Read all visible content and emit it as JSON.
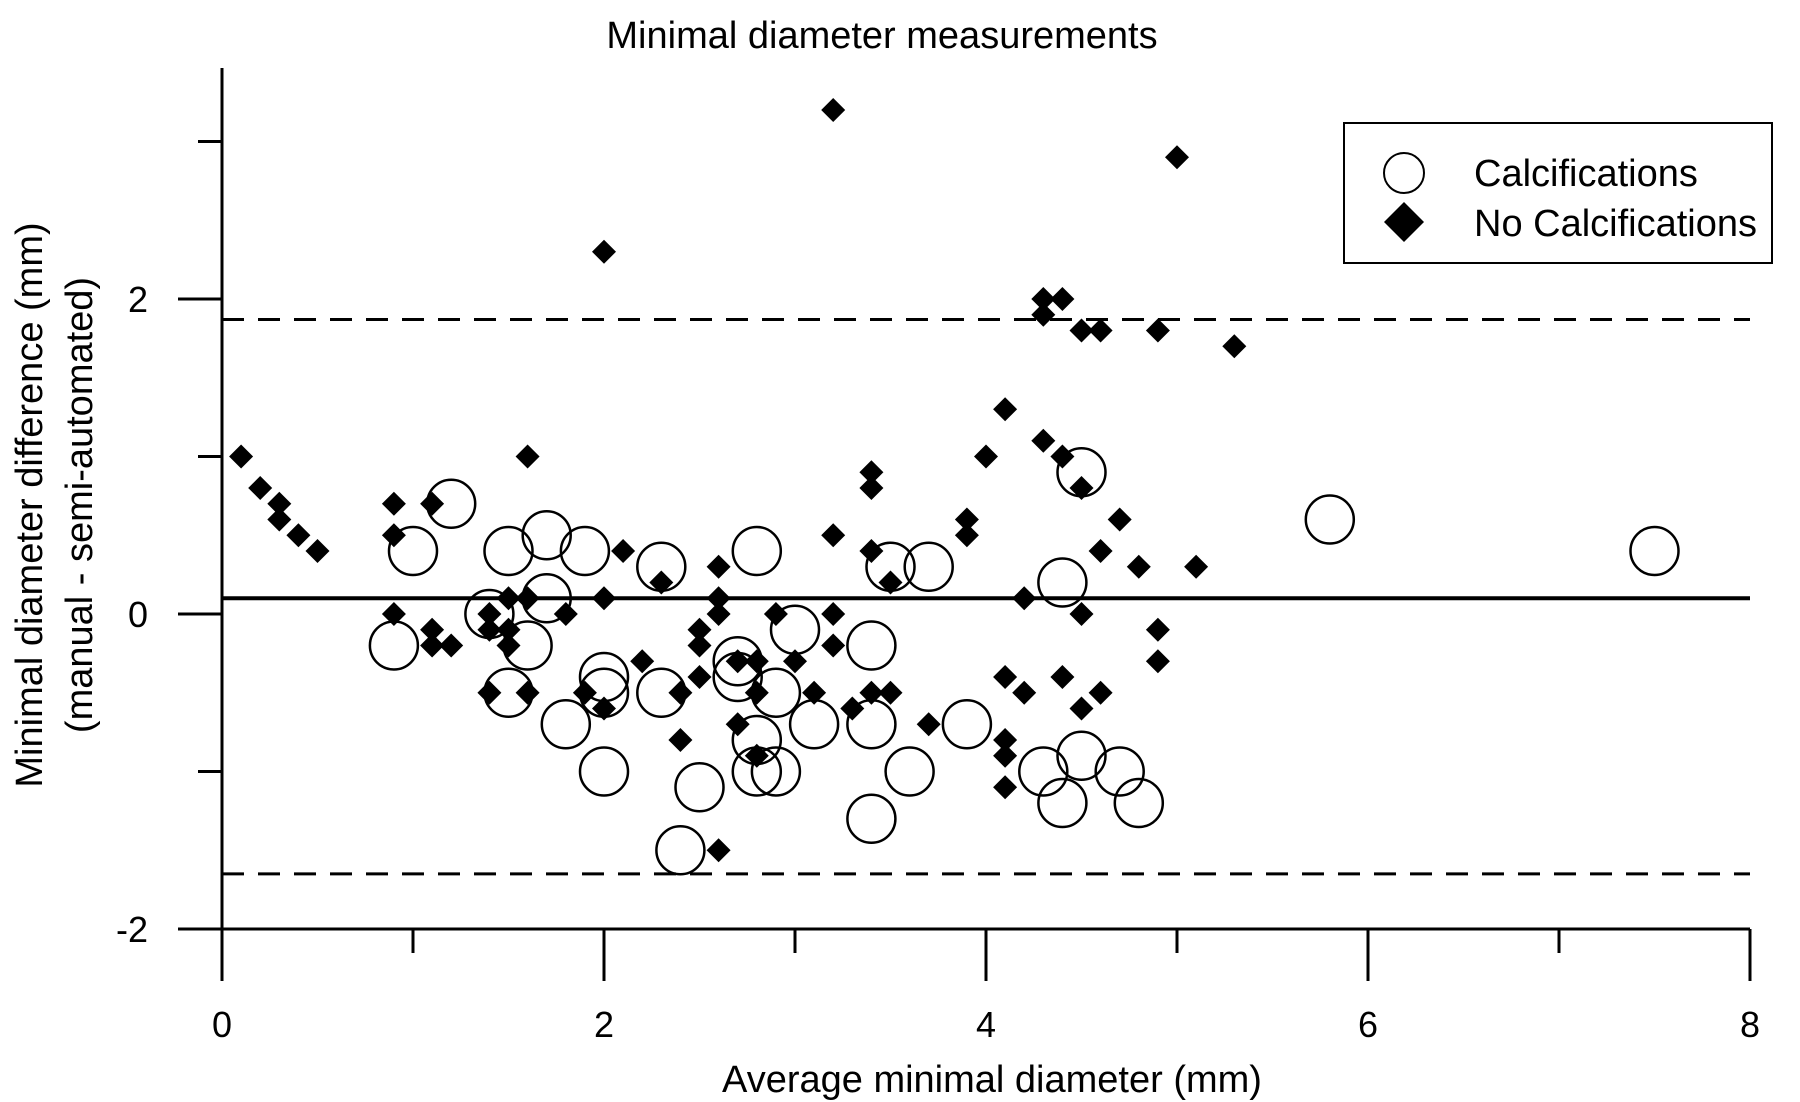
{
  "chart_data": {
    "type": "scatter",
    "title": "Minimal diameter measurements",
    "xlabel": "Average minimal diameter (mm)",
    "ylabel": "Minimal diameter difference (mm)",
    "ylabel2": "(manual - semi-automated)",
    "xlim": [
      0,
      8
    ],
    "ylim": [
      -2,
      3.5
    ],
    "x_ticks": [
      0,
      2,
      4,
      6,
      8
    ],
    "x_minor_ticks": [
      1,
      3,
      5,
      7
    ],
    "y_ticks": [
      -2,
      0,
      2
    ],
    "y_minor_ticks": [
      -1,
      1,
      3
    ],
    "grid": false,
    "legend_position": "top-right",
    "reference_lines": {
      "mean_difference": 0.1,
      "upper_limit_of_agreement": 1.87,
      "lower_limit_of_agreement": -1.65
    },
    "series": [
      {
        "name": "Calcifications",
        "marker": "open-circle",
        "points": [
          [
            0.9,
            -0.2
          ],
          [
            1.0,
            0.4
          ],
          [
            1.2,
            0.7
          ],
          [
            1.4,
            0.0
          ],
          [
            1.5,
            0.4
          ],
          [
            1.5,
            -0.5
          ],
          [
            1.6,
            -0.2
          ],
          [
            1.7,
            0.5
          ],
          [
            1.7,
            0.1
          ],
          [
            1.8,
            -0.7
          ],
          [
            1.9,
            0.4
          ],
          [
            2.0,
            -0.4
          ],
          [
            2.0,
            -0.5
          ],
          [
            2.0,
            -1.0
          ],
          [
            2.3,
            -0.5
          ],
          [
            2.3,
            0.3
          ],
          [
            2.4,
            -1.5
          ],
          [
            2.5,
            -1.1
          ],
          [
            2.7,
            -0.3
          ],
          [
            2.7,
            -0.4
          ],
          [
            2.8,
            0.4
          ],
          [
            2.8,
            -0.8
          ],
          [
            2.8,
            -1.0
          ],
          [
            2.9,
            -0.5
          ],
          [
            2.9,
            -1.0
          ],
          [
            3.0,
            -0.1
          ],
          [
            3.1,
            -0.7
          ],
          [
            3.4,
            -0.2
          ],
          [
            3.4,
            -0.7
          ],
          [
            3.4,
            -1.3
          ],
          [
            3.5,
            0.3
          ],
          [
            3.6,
            -1.0
          ],
          [
            3.7,
            0.3
          ],
          [
            3.9,
            -0.7
          ],
          [
            4.3,
            -1.0
          ],
          [
            4.4,
            -1.2
          ],
          [
            4.4,
            0.2
          ],
          [
            4.5,
            0.9
          ],
          [
            4.5,
            -0.9
          ],
          [
            4.7,
            -1.0
          ],
          [
            4.8,
            -1.2
          ],
          [
            5.8,
            0.6
          ],
          [
            7.5,
            0.4
          ]
        ]
      },
      {
        "name": "No Calcifications",
        "marker": "filled-diamond",
        "points": [
          [
            0.1,
            1.0
          ],
          [
            0.2,
            0.8
          ],
          [
            0.3,
            0.7
          ],
          [
            0.3,
            0.6
          ],
          [
            0.4,
            0.5
          ],
          [
            0.5,
            0.4
          ],
          [
            0.9,
            0.7
          ],
          [
            0.9,
            0.5
          ],
          [
            0.9,
            0.0
          ],
          [
            1.1,
            0.7
          ],
          [
            1.1,
            -0.1
          ],
          [
            1.1,
            -0.2
          ],
          [
            1.2,
            -0.2
          ],
          [
            1.4,
            -0.1
          ],
          [
            1.4,
            0.0
          ],
          [
            1.4,
            -0.5
          ],
          [
            1.5,
            -0.1
          ],
          [
            1.5,
            -0.2
          ],
          [
            1.5,
            0.1
          ],
          [
            1.6,
            1.0
          ],
          [
            1.6,
            0.1
          ],
          [
            1.6,
            -0.5
          ],
          [
            1.8,
            0.0
          ],
          [
            1.9,
            -0.5
          ],
          [
            2.0,
            2.3
          ],
          [
            2.0,
            0.1
          ],
          [
            2.0,
            -0.6
          ],
          [
            2.1,
            0.4
          ],
          [
            2.2,
            -0.3
          ],
          [
            2.3,
            0.2
          ],
          [
            2.4,
            -0.5
          ],
          [
            2.4,
            -0.8
          ],
          [
            2.5,
            -0.1
          ],
          [
            2.5,
            -0.2
          ],
          [
            2.5,
            -0.4
          ],
          [
            2.6,
            0.3
          ],
          [
            2.6,
            0.1
          ],
          [
            2.6,
            0.0
          ],
          [
            2.6,
            -1.5
          ],
          [
            2.7,
            -0.3
          ],
          [
            2.7,
            -0.7
          ],
          [
            2.8,
            -0.3
          ],
          [
            2.8,
            -0.5
          ],
          [
            2.8,
            -0.9
          ],
          [
            2.9,
            0.0
          ],
          [
            3.0,
            -0.3
          ],
          [
            3.1,
            -0.5
          ],
          [
            3.2,
            3.2
          ],
          [
            3.2,
            0.5
          ],
          [
            3.2,
            0.0
          ],
          [
            3.2,
            -0.2
          ],
          [
            3.3,
            -0.6
          ],
          [
            3.4,
            0.9
          ],
          [
            3.4,
            0.8
          ],
          [
            3.4,
            0.4
          ],
          [
            3.4,
            -0.5
          ],
          [
            3.5,
            0.2
          ],
          [
            3.5,
            -0.5
          ],
          [
            3.7,
            -0.7
          ],
          [
            3.9,
            0.6
          ],
          [
            3.9,
            0.5
          ],
          [
            4.0,
            1.0
          ],
          [
            4.1,
            1.3
          ],
          [
            4.1,
            -0.4
          ],
          [
            4.1,
            -0.8
          ],
          [
            4.1,
            -0.9
          ],
          [
            4.1,
            -1.1
          ],
          [
            4.2,
            0.1
          ],
          [
            4.2,
            -0.5
          ],
          [
            4.3,
            2.0
          ],
          [
            4.3,
            1.9
          ],
          [
            4.3,
            1.1
          ],
          [
            4.4,
            2.0
          ],
          [
            4.4,
            1.0
          ],
          [
            4.4,
            -0.4
          ],
          [
            4.5,
            1.8
          ],
          [
            4.5,
            0.8
          ],
          [
            4.5,
            0.0
          ],
          [
            4.5,
            -0.6
          ],
          [
            4.6,
            1.8
          ],
          [
            4.6,
            0.4
          ],
          [
            4.6,
            -0.5
          ],
          [
            4.7,
            0.6
          ],
          [
            4.8,
            0.3
          ],
          [
            4.9,
            1.8
          ],
          [
            4.9,
            -0.1
          ],
          [
            4.9,
            -0.3
          ],
          [
            5.0,
            2.9
          ],
          [
            5.1,
            0.3
          ],
          [
            5.3,
            1.7
          ]
        ]
      }
    ]
  }
}
